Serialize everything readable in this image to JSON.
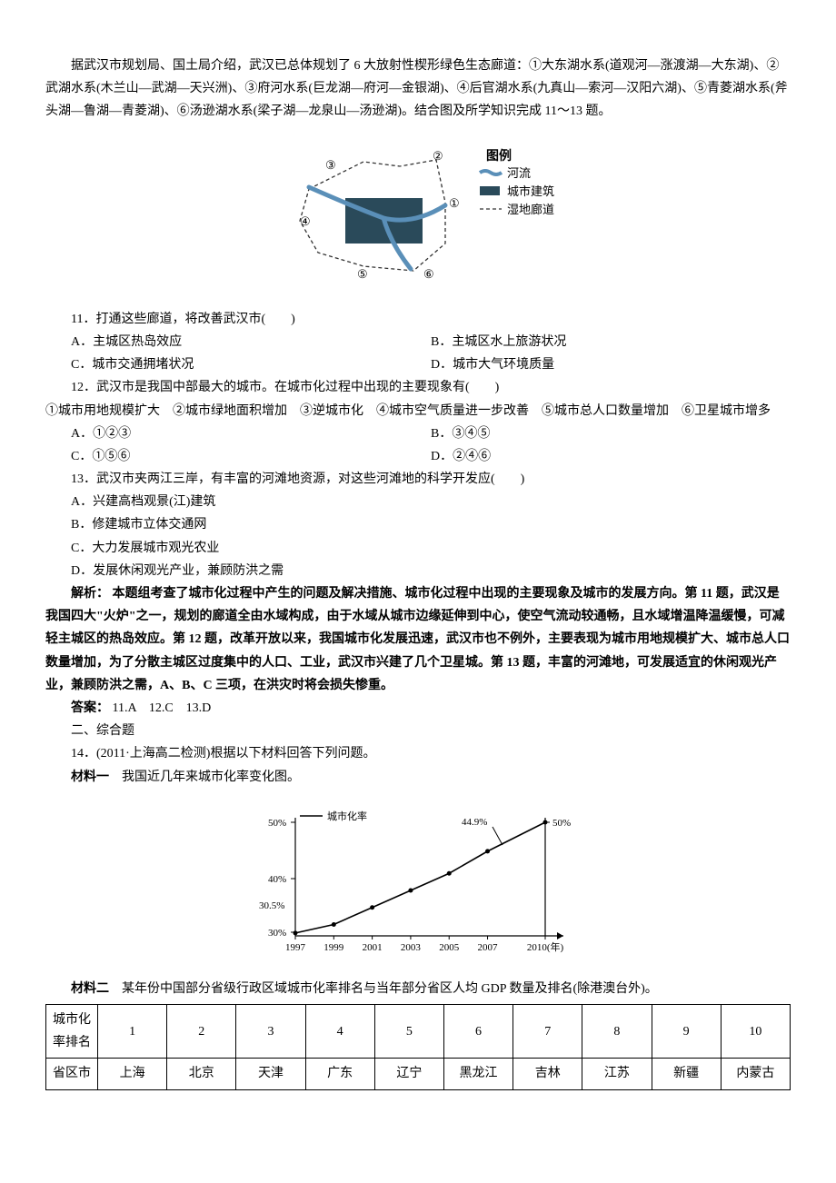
{
  "intro": {
    "p1": "据武汉市规划局、国土局介绍，武汉已总体规划了 6 大放射性楔形绿色生态廊道：①大东湖水系(道观河—涨渡湖—大东湖)、②武湖水系(木兰山—武湖—天兴洲)、③府河水系(巨龙湖—府河—金银湖)、④后官湖水系(九真山—索河—汉阳六湖)、⑤青菱湖水系(斧头湖—鲁湖—青菱湖)、⑥汤逊湖水系(梁子湖—龙泉山—汤逊湖)。结合图及所学知识完成 11～13 题。"
  },
  "fig1": {
    "legend_title": "图例",
    "legend_items": [
      "河流",
      "城市建筑",
      "湿地廊道"
    ],
    "labels": [
      "①",
      "②",
      "③",
      "④",
      "⑤",
      "⑥"
    ],
    "colors": {
      "river": "#5a8fb8",
      "building": "#2a4a5a",
      "corridor": "#333"
    }
  },
  "q11": {
    "stem": "11．打通这些廊道，将改善武汉市(　　)",
    "A": "A．主城区热岛效应",
    "B": "B．主城区水上旅游状况",
    "C": "C．城市交通拥堵状况",
    "D": "D．城市大气环境质量"
  },
  "q12": {
    "stem": "12．武汉市是我国中部最大的城市。在城市化过程中出现的主要现象有(　　)",
    "items": "①城市用地规模扩大　②城市绿地面积增加　③逆城市化　④城市空气质量进一步改善　⑤城市总人口数量增加　⑥卫星城市增多",
    "A": "A．①②③",
    "B": "B．③④⑤",
    "C": "C．①⑤⑥",
    "D": "D．②④⑥"
  },
  "q13": {
    "stem": "13．武汉市夹两江三岸，有丰富的河滩地资源，对这些河滩地的科学开发应(　　)",
    "A": "A．兴建高档观景(江)建筑",
    "B": "B．修建城市立体交通网",
    "C": "C．大力发展城市观光农业",
    "D": "D．发展休闲观光产业，兼顾防洪之需"
  },
  "analysis": {
    "label": "解析：",
    "text": "本题组考查了城市化过程中产生的问题及解决措施、城市化过程中出现的主要现象及城市的发展方向。第 11 题，武汉是我国四大\"火炉\"之一，规划的廊道全由水域构成，由于水域从城市边缘延伸到中心，使空气流动较通畅，且水域增温降温缓慢，可减轻主城区的热岛效应。第 12 题，改革开放以来，我国城市化发展迅速，武汉市也不例外，主要表现为城市用地规模扩大、城市总人口数量增加，为了分散主城区过度集中的人口、工业，武汉市兴建了几个卫星城。第 13 题，丰富的河滩地，可发展适宜的休闲观光产业，兼顾防洪之需，A、B、C 三项，在洪灾时将会损失惨重。"
  },
  "answer": {
    "label": "答案：",
    "text": "11.A　12.C　13.D"
  },
  "section2": "二、综合题",
  "q14": {
    "stem": "14．(2011·上海高二检测)根据以下材料回答下列问题。",
    "mat1_label": "材料一",
    "mat1_text": "　我国近几年来城市化率变化图。",
    "mat2_label": "材料二",
    "mat2_text": "　某年份中国部分省级行政区域城市化率排名与当年部分省区人均 GDP 数量及排名(除港澳台外)。"
  },
  "chart": {
    "title": "城市化率",
    "y_left_label": "50%",
    "y_right_label": "50%",
    "y_40": "40%",
    "y_305": "30.5%",
    "y_30": "30%",
    "val_449": "44.9%",
    "x_labels": [
      "1997",
      "1999",
      "2001",
      "2003",
      "2005",
      "2007",
      "2010(年)"
    ],
    "points_x": [
      1997,
      1999,
      2001,
      2003,
      2005,
      2007,
      2010
    ],
    "points_y": [
      30.5,
      32,
      35,
      38,
      41,
      44.9,
      50
    ],
    "y_range": [
      30,
      50
    ],
    "colors": {
      "line": "#000",
      "axis": "#000",
      "bg": "#fff"
    },
    "font_size": 11
  },
  "table": {
    "row1_label": "城市化率排名",
    "row2_label": "省区市",
    "ranks": [
      "1",
      "2",
      "3",
      "4",
      "5",
      "6",
      "7",
      "8",
      "9",
      "10"
    ],
    "provinces": [
      "上海",
      "北京",
      "天津",
      "广东",
      "辽宁",
      "黑龙江",
      "吉林",
      "江苏",
      "新疆",
      "内蒙古"
    ]
  }
}
